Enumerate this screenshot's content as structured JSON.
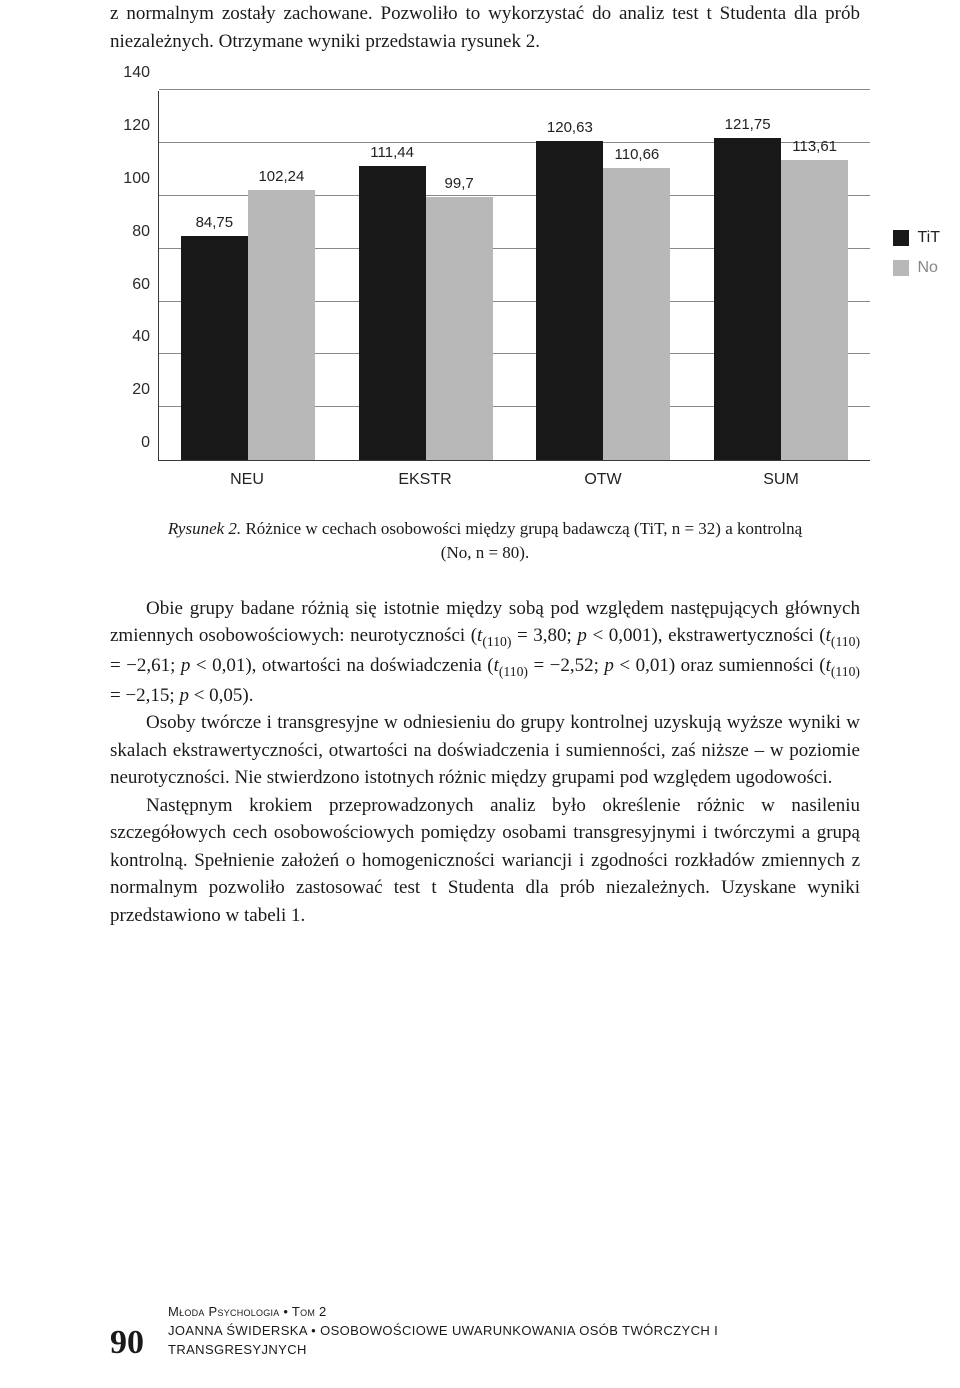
{
  "intro": {
    "text": "z normalnym zostały zachowane. Pozwoliło to wykorzystać do analiz test t Studenta dla prób niezależnych. Otrzymane wyniki przedstawia rysunek 2."
  },
  "chart": {
    "type": "bar",
    "ylim": [
      0,
      140
    ],
    "ytick_step": 20,
    "yticks": [
      0,
      20,
      40,
      60,
      80,
      100,
      120,
      140
    ],
    "background_color": "#ffffff",
    "grid_color": "#888888",
    "categories": [
      "NEU",
      "EKSTR",
      "OTW",
      "SUM"
    ],
    "series": [
      {
        "name": "TiT",
        "color": "#181818",
        "values": [
          84.75,
          111.44,
          120.63,
          121.75
        ],
        "labels": [
          "84,75",
          "111,44",
          "120,63",
          "121,75"
        ]
      },
      {
        "name": "No",
        "color": "#b8b8b8",
        "values": [
          102.24,
          99.7,
          110.66,
          113.61
        ],
        "labels": [
          "102,24",
          "99,7",
          "110,66",
          "113,61"
        ]
      }
    ],
    "legend": {
      "items": [
        "TiT",
        "No"
      ]
    }
  },
  "caption": {
    "lead": "Rysunek 2.",
    "text": " Różnice w cechach osobowości między grupą badawczą (TiT, n = 32) a kontrolną (No, n = 80)."
  },
  "para1_html": "Obie grupy badane różnią się istotnie między sobą pod względem następujących głównych zmiennych osobowościowych: neurotyczności (<i>t</i><sub>(110)</sub> = 3,80; <i>p</i> < 0,001), ekstrawertyczności (<i>t</i><sub>(110)</sub> = −2,61; <i>p</i> < 0,01), otwartości na doświadczenia (<i>t</i><sub>(110)</sub> = −2,52; <i>p</i> < 0,01) oraz sumienności (<i>t</i><sub>(110)</sub> = −2,15; <i>p</i> < 0,05).",
  "para2": "Osoby twórcze i transgresyjne w odniesieniu do grupy kontrolnej uzyskują wyższe wyniki w skalach ekstrawertyczności, otwartości na doświadczenia i sumienności, zaś niższe – w poziomie neurotyczności. Nie stwierdzono istotnych różnic między grupami pod względem ugodowości.",
  "para3": "Następnym krokiem przeprowadzonych analiz było określenie różnic w nasileniu szczegółowych cech osobowościowych pomiędzy osobami transgresyjnymi i twórczymi a grupą kontrolną. Spełnienie założeń o homogeniczności wariancji i zgodności rozkładów zmiennych z normalnym pozwoliło zastosować test t Studenta dla prób niezależnych. Uzyskane wyniki przedstawiono w tabeli 1.",
  "footer": {
    "page": "90",
    "line1": "Młoda Psychologia • Tom 2",
    "line2": "JOANNA ŚWIDERSKA • OSOBOWOŚCIOWE UWARUNKOWANIA OSÓB TWÓRCZYCH I TRANSGRESYJNYCH"
  }
}
